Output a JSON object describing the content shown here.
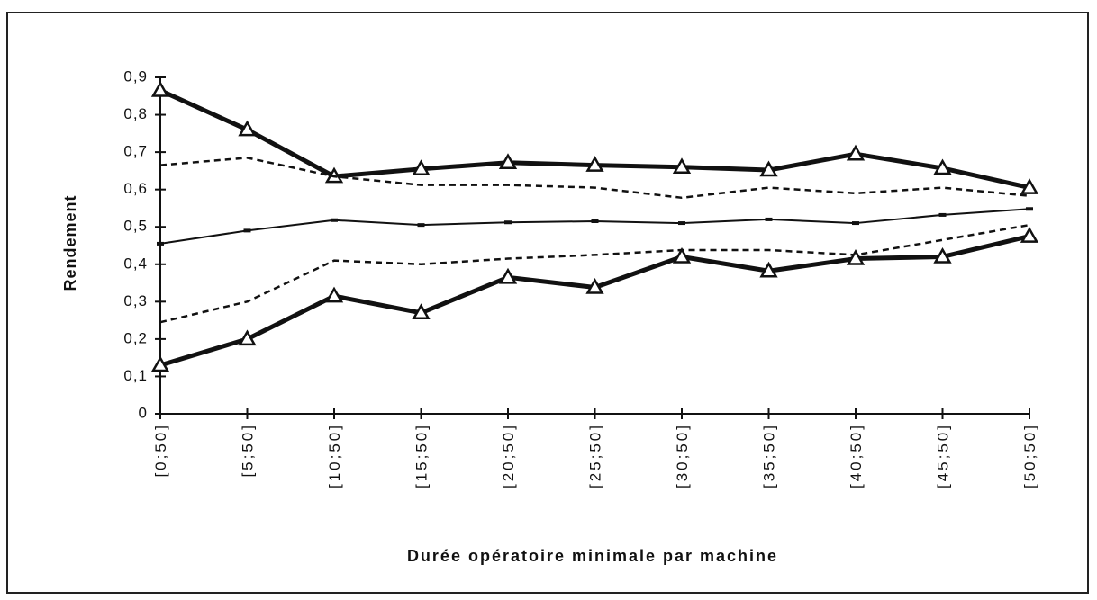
{
  "chart_data": {
    "type": "line",
    "xlabel": "Durée opératoire minimale par machine",
    "ylabel": "Rendement",
    "categories": [
      "[0;50]",
      "[5;50]",
      "[10;50]",
      "[15;50]",
      "[20;50]",
      "[25;50]",
      "[30;50]",
      "[35;50]",
      "[40;50]",
      "[45;50]",
      "[50;50]"
    ],
    "ylim": [
      0,
      0.9
    ],
    "yticks": [
      0,
      {
        "value": 0.1,
        "label": "0,1"
      },
      {
        "value": 0.2,
        "label": "0,2"
      },
      {
        "value": 0.3,
        "label": "0,3"
      },
      {
        "value": 0.4,
        "label": "0,4"
      },
      {
        "value": 0.5,
        "label": "0,5"
      },
      {
        "value": 0.6,
        "label": "0,6"
      },
      {
        "value": 0.7,
        "label": "0,7"
      },
      {
        "value": 0.8,
        "label": "0,8"
      },
      {
        "value": 0.9,
        "label": "0,9"
      }
    ],
    "grid": false,
    "series": [
      {
        "color": "#111111",
        "line_style": "thick",
        "marker": "triangle",
        "values": [
          0.865,
          0.76,
          0.635,
          0.655,
          0.672,
          0.665,
          0.66,
          0.652,
          0.695,
          0.657,
          0.605
        ]
      },
      {
        "color": "#111111",
        "line_style": "dashed",
        "marker": "none",
        "values": [
          0.665,
          0.685,
          0.635,
          0.612,
          0.612,
          0.605,
          0.578,
          0.605,
          0.59,
          0.605,
          0.583
        ]
      },
      {
        "color": "#111111",
        "line_style": "thin",
        "marker": "dash",
        "values": [
          0.455,
          0.49,
          0.518,
          0.505,
          0.512,
          0.515,
          0.51,
          0.52,
          0.51,
          0.532,
          0.548
        ]
      },
      {
        "color": "#111111",
        "line_style": "dashed",
        "marker": "none",
        "values": [
          0.245,
          0.3,
          0.41,
          0.4,
          0.415,
          0.425,
          0.438,
          0.438,
          0.425,
          0.465,
          0.505
        ]
      },
      {
        "color": "#111111",
        "line_style": "thick",
        "marker": "triangle",
        "values": [
          0.13,
          0.2,
          0.315,
          0.27,
          0.365,
          0.338,
          0.42,
          0.382,
          0.415,
          0.42,
          0.475
        ]
      }
    ]
  }
}
